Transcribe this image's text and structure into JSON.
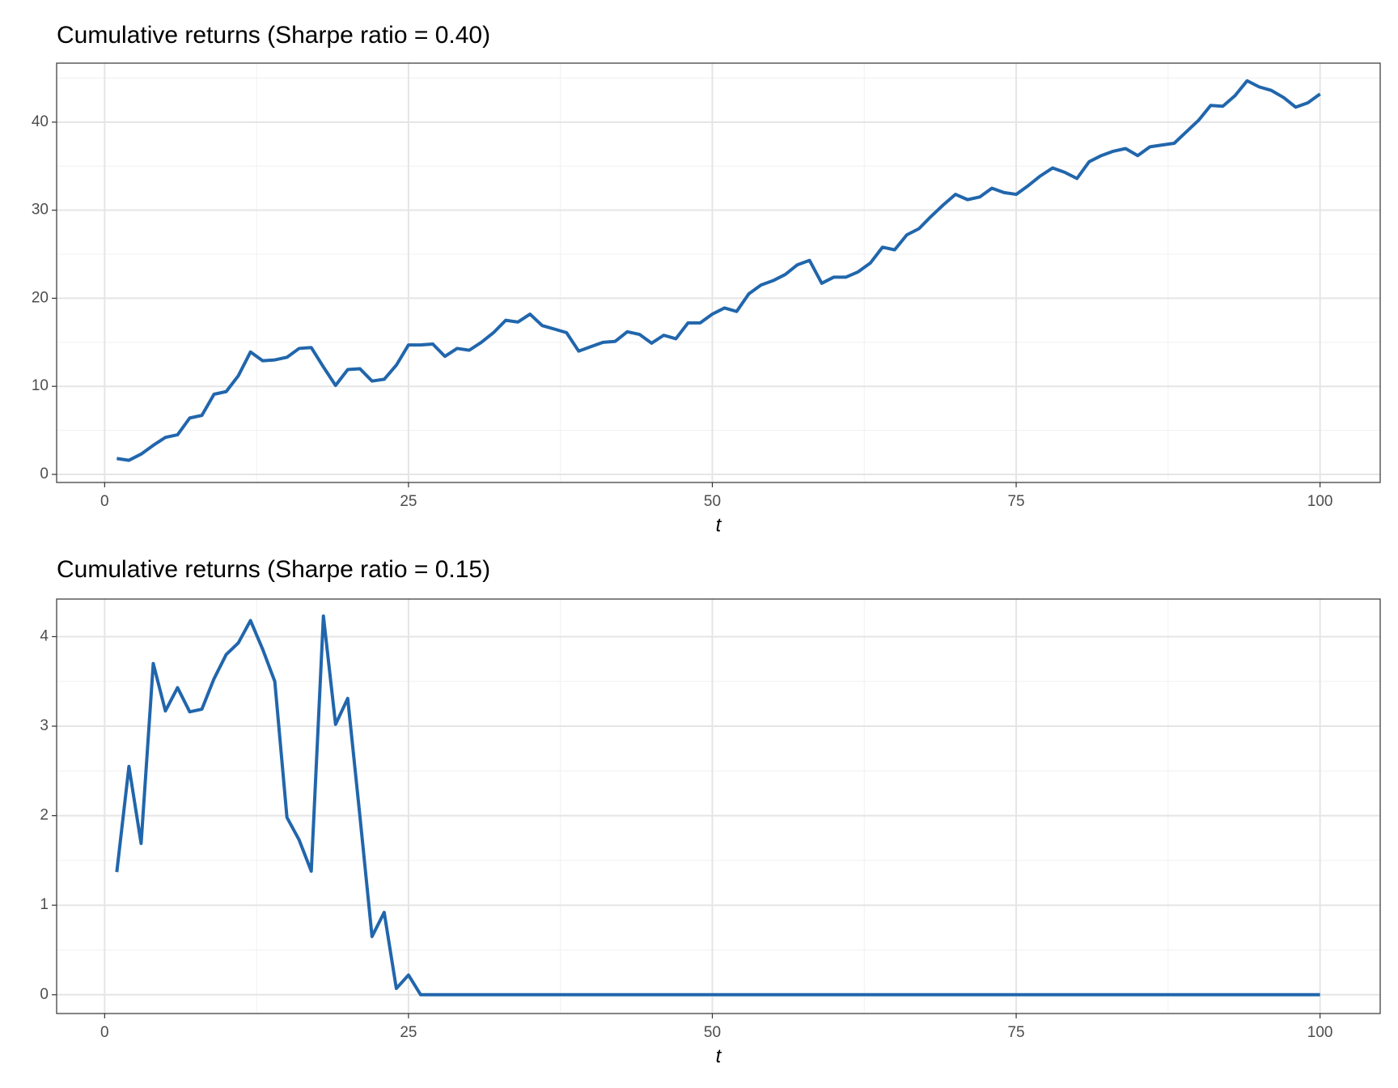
{
  "chart_data": [
    {
      "type": "line",
      "title": "Cumulative returns (Sharpe ratio = 0.40)",
      "x_label": "t",
      "x": [
        1,
        2,
        3,
        4,
        5,
        6,
        7,
        8,
        9,
        10,
        11,
        12,
        13,
        14,
        15,
        16,
        17,
        18,
        19,
        20,
        21,
        22,
        23,
        24,
        25,
        26,
        27,
        28,
        29,
        30,
        31,
        32,
        33,
        34,
        35,
        36,
        37,
        38,
        39,
        40,
        41,
        42,
        43,
        44,
        45,
        46,
        47,
        48,
        49,
        50,
        51,
        52,
        53,
        54,
        55,
        56,
        57,
        58,
        59,
        60,
        61,
        62,
        63,
        64,
        65,
        66,
        67,
        68,
        69,
        70,
        71,
        72,
        73,
        74,
        75,
        76,
        77,
        78,
        79,
        80,
        81,
        82,
        83,
        84,
        85,
        86,
        87,
        88,
        89,
        90,
        91,
        92,
        93,
        94,
        95,
        96,
        97,
        98,
        99,
        100
      ],
      "series": [
        {
          "color": "#2166ac",
          "values": [
            1.8,
            1.6,
            2.3,
            3.3,
            4.2,
            4.5,
            6.4,
            6.7,
            9.1,
            9.4,
            11.2,
            13.9,
            12.9,
            13.0,
            13.3,
            14.3,
            14.4,
            12.2,
            10.1,
            11.9,
            12.0,
            10.6,
            10.8,
            12.4,
            14.7,
            14.7,
            14.8,
            13.4,
            14.3,
            14.1,
            15.0,
            16.1,
            17.5,
            17.3,
            18.2,
            16.9,
            16.5,
            16.1,
            14.0,
            14.5,
            15.0,
            15.1,
            16.2,
            15.9,
            14.9,
            15.8,
            15.4,
            17.2,
            17.2,
            18.2,
            18.9,
            18.5,
            20.5,
            21.5,
            22.0,
            22.7,
            23.8,
            24.3,
            21.7,
            22.4,
            22.4,
            23.0,
            24.0,
            25.8,
            25.5,
            27.2,
            27.9,
            29.3,
            30.6,
            31.8,
            31.2,
            31.5,
            32.5,
            32.0,
            31.8,
            32.8,
            33.9,
            34.8,
            34.3,
            33.6,
            35.5,
            36.2,
            36.7,
            37.0,
            36.2,
            37.2,
            37.4,
            37.6,
            38.9,
            40.2,
            41.9,
            41.8,
            43.0,
            44.7,
            44.0,
            43.6,
            42.8,
            41.7,
            42.2,
            43.2
          ]
        }
      ],
      "xlim": [
        -3.95,
        104.95
      ],
      "xticks": [
        0,
        25,
        50,
        75,
        100
      ],
      "ylim": [
        -0.92,
        46.7
      ],
      "yticks": [
        0,
        10,
        20,
        30,
        40
      ],
      "grid": true
    },
    {
      "type": "line",
      "title": "Cumulative returns (Sharpe ratio = 0.15)",
      "x_label": "t",
      "x": [
        1,
        2,
        3,
        4,
        5,
        6,
        7,
        8,
        9,
        10,
        11,
        12,
        13,
        14,
        15,
        16,
        17,
        18,
        19,
        20,
        21,
        22,
        23,
        24,
        25,
        26,
        27,
        28,
        29,
        30,
        31,
        32,
        33,
        34,
        35,
        36,
        37,
        38,
        39,
        40,
        41,
        42,
        43,
        44,
        45,
        46,
        47,
        48,
        49,
        50,
        51,
        52,
        53,
        54,
        55,
        56,
        57,
        58,
        59,
        60,
        61,
        62,
        63,
        64,
        65,
        66,
        67,
        68,
        69,
        70,
        71,
        72,
        73,
        74,
        75,
        76,
        77,
        78,
        79,
        80,
        81,
        82,
        83,
        84,
        85,
        86,
        87,
        88,
        89,
        90,
        91,
        92,
        93,
        94,
        95,
        96,
        97,
        98,
        99,
        100
      ],
      "series": [
        {
          "color": "#2166ac",
          "values": [
            1.37,
            2.55,
            1.69,
            3.7,
            3.17,
            3.43,
            3.16,
            3.19,
            3.53,
            3.8,
            3.93,
            4.18,
            3.86,
            3.5,
            1.98,
            1.73,
            1.38,
            4.23,
            3.02,
            3.31,
            2.0,
            0.65,
            0.92,
            0.07,
            0.22,
            0,
            0,
            0,
            0,
            0,
            0,
            0,
            0,
            0,
            0,
            0,
            0,
            0,
            0,
            0,
            0,
            0,
            0,
            0,
            0,
            0,
            0,
            0,
            0,
            0,
            0,
            0,
            0,
            0,
            0,
            0,
            0,
            0,
            0,
            0,
            0,
            0,
            0,
            0,
            0,
            0,
            0,
            0,
            0,
            0,
            0,
            0,
            0,
            0,
            0,
            0,
            0,
            0,
            0,
            0,
            0,
            0,
            0,
            0,
            0,
            0,
            0,
            0,
            0,
            0,
            0,
            0,
            0,
            0,
            0,
            0,
            0,
            0,
            0,
            0
          ]
        }
      ],
      "xlim": [
        -3.95,
        104.95
      ],
      "xticks": [
        0,
        25,
        50,
        75,
        100
      ],
      "ylim": [
        -0.21,
        4.42
      ],
      "yticks": [
        0,
        1,
        2,
        3,
        4
      ],
      "grid": true
    }
  ]
}
